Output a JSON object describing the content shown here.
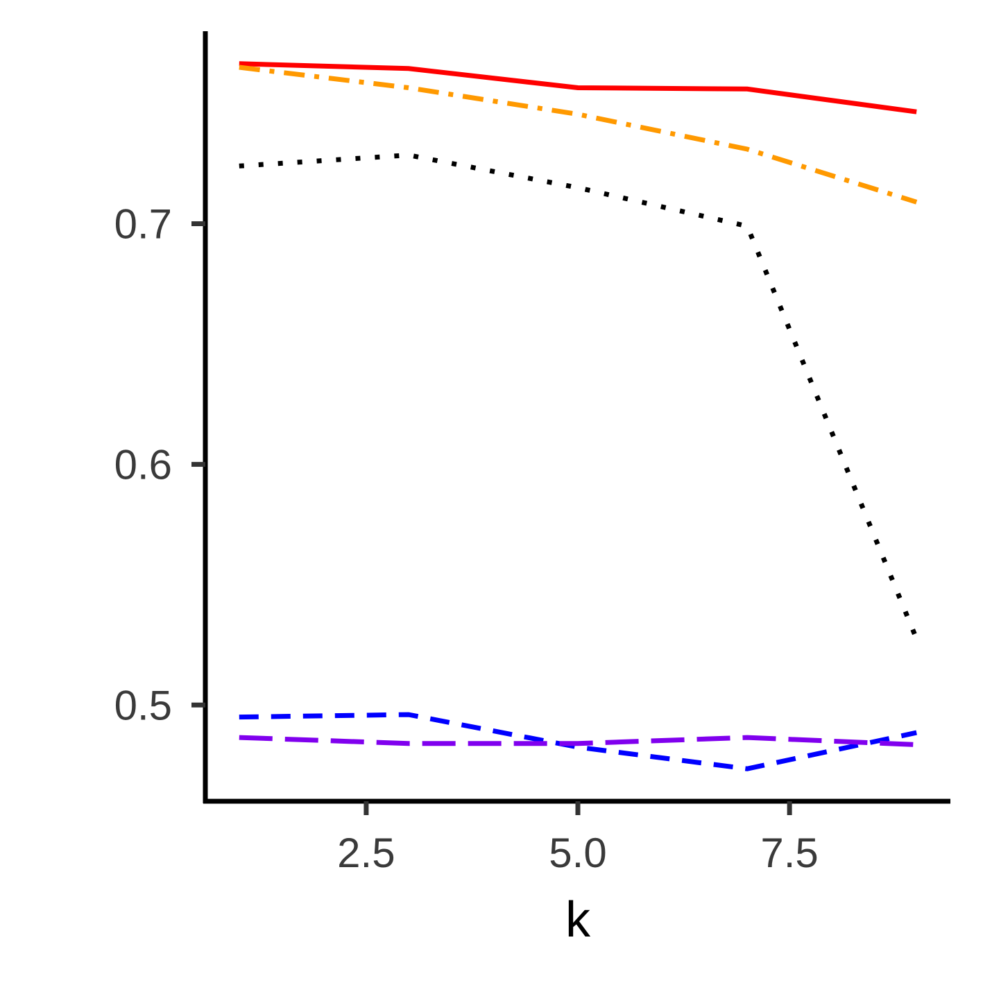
{
  "chart_data": {
    "type": "line",
    "title": "",
    "xlabel": "k",
    "ylabel": "",
    "xlim": [
      0.6,
      9.4
    ],
    "ylim": [
      0.46,
      0.78
    ],
    "x_ticks": [
      {
        "value": 2.5,
        "label": "2.5"
      },
      {
        "value": 5.0,
        "label": "5.0"
      },
      {
        "value": 7.5,
        "label": "7.5"
      }
    ],
    "y_ticks": [
      {
        "value": 0.5,
        "label": "0.5"
      },
      {
        "value": 0.6,
        "label": "0.6"
      },
      {
        "value": 0.7,
        "label": "0.7"
      }
    ],
    "grid": false,
    "legend": "none",
    "x": [
      1,
      3,
      5,
      7,
      9
    ],
    "series": [
      {
        "color": "#FF0000",
        "dash": "solid",
        "values": [
          0.7665,
          0.7645,
          0.7565,
          0.756,
          0.7465
        ]
      },
      {
        "color": "#FF9900",
        "dash": "dashdot",
        "values": [
          0.765,
          0.7565,
          0.7455,
          0.731,
          0.709
        ]
      },
      {
        "color": "#000000",
        "dash": "dotted",
        "values": [
          0.724,
          0.7285,
          0.715,
          0.699,
          0.5275
        ]
      },
      {
        "color": "#0000FF",
        "dash": "dashed",
        "values": [
          0.495,
          0.496,
          0.4825,
          0.4735,
          0.4885
        ]
      },
      {
        "color": "#8000EE",
        "dash": "longdash",
        "values": [
          0.4865,
          0.484,
          0.484,
          0.4865,
          0.4835
        ]
      }
    ]
  }
}
